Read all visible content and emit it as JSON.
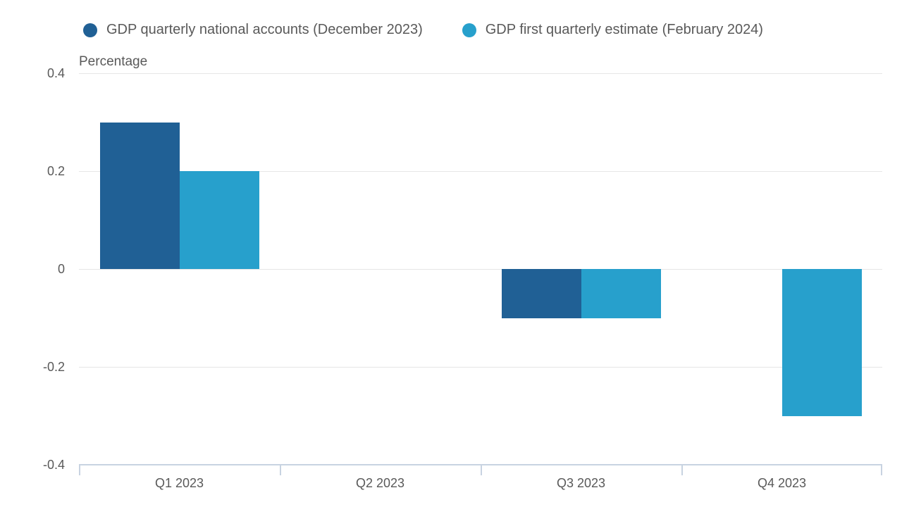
{
  "colors": {
    "series_dark_blue": "#206095",
    "series_light_blue": "#27a0cc",
    "gridline": "#e6e6e6",
    "axis_line": "#c8d3e1",
    "text": "#595959",
    "background": "#ffffff"
  },
  "chart_data": {
    "type": "bar",
    "title": "",
    "axis_label": "Percentage",
    "categories": [
      "Q1 2023",
      "Q2 2023",
      "Q3 2023",
      "Q4 2023"
    ],
    "series": [
      {
        "name": "GDP quarterly national accounts (December 2023)",
        "color": "#206095",
        "values": [
          0.3,
          0.0,
          -0.1,
          null
        ]
      },
      {
        "name": "GDP first quarterly estimate (February 2024)",
        "color": "#27a0cc",
        "values": [
          0.2,
          0.0,
          -0.1,
          -0.3
        ]
      }
    ],
    "ylim": [
      -0.4,
      0.4
    ],
    "yticks": [
      {
        "label": "0.4",
        "value": 0.4
      },
      {
        "label": "0.2",
        "value": 0.2
      },
      {
        "label": "0",
        "value": 0
      },
      {
        "label": "-0.2",
        "value": -0.2
      },
      {
        "label": "-0.4",
        "value": -0.4
      }
    ],
    "grid": true,
    "legend_position": "top"
  }
}
